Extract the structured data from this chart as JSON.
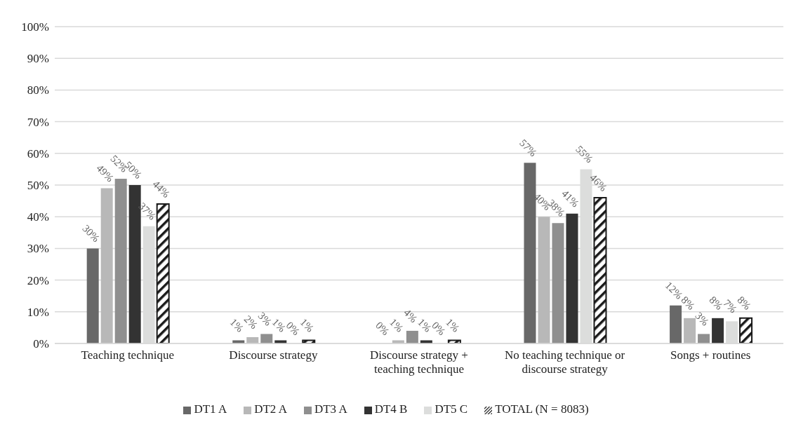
{
  "chart_data": {
    "type": "bar",
    "categories": [
      "Teaching technique",
      "Discourse strategy",
      "Discourse strategy + teaching technique",
      "No teaching technique or discourse strategy",
      "Songs + routines"
    ],
    "series": [
      {
        "name": "DT1 A",
        "color": "#686868",
        "values": [
          30,
          1,
          0,
          57,
          12
        ],
        "value_labels": [
          "30%",
          "1%",
          "0%",
          "57%",
          "12%"
        ]
      },
      {
        "name": "DT2 A",
        "color": "#b8b8b8",
        "values": [
          49,
          2,
          1,
          40,
          8
        ],
        "value_labels": [
          "49%",
          "2%",
          "1%",
          "40%",
          "8%"
        ]
      },
      {
        "name": "DT3 A",
        "color": "#8f8f8f",
        "values": [
          52,
          3,
          4,
          38,
          3
        ],
        "value_labels": [
          "52%",
          "3%",
          "4%",
          "38%",
          "3%"
        ]
      },
      {
        "name": "DT4 B",
        "color": "#333333",
        "values": [
          50,
          1,
          1,
          41,
          8
        ],
        "value_labels": [
          "50%",
          "1%",
          "1%",
          "41%",
          "8%"
        ]
      },
      {
        "name": "DT5 C",
        "color": "#dcdddc",
        "values": [
          37,
          0,
          0,
          55,
          7
        ],
        "value_labels": [
          "37%",
          "0%",
          "0%",
          "55%",
          "7%"
        ]
      },
      {
        "name": "TOTAL (N = 8083)",
        "color": "#1a1a1a",
        "values": [
          44,
          1,
          1,
          46,
          8
        ],
        "value_labels": [
          "44%",
          "1%",
          "1%",
          "46%",
          "8%"
        ]
      }
    ],
    "ylim": [
      0,
      100
    ],
    "yticks": [
      {
        "value": 0,
        "label": "0%"
      },
      {
        "value": 10,
        "label": "10%"
      },
      {
        "value": 20,
        "label": "20%"
      },
      {
        "value": 30,
        "label": "30%"
      },
      {
        "value": 40,
        "label": "40%"
      },
      {
        "value": 50,
        "label": "50%"
      },
      {
        "value": 60,
        "label": "60%"
      },
      {
        "value": 70,
        "label": "70%"
      },
      {
        "value": 80,
        "label": "80%"
      },
      {
        "value": 90,
        "label": "90%"
      },
      {
        "value": 100,
        "label": "100%"
      }
    ],
    "grid": "y",
    "legend": "bottom"
  }
}
